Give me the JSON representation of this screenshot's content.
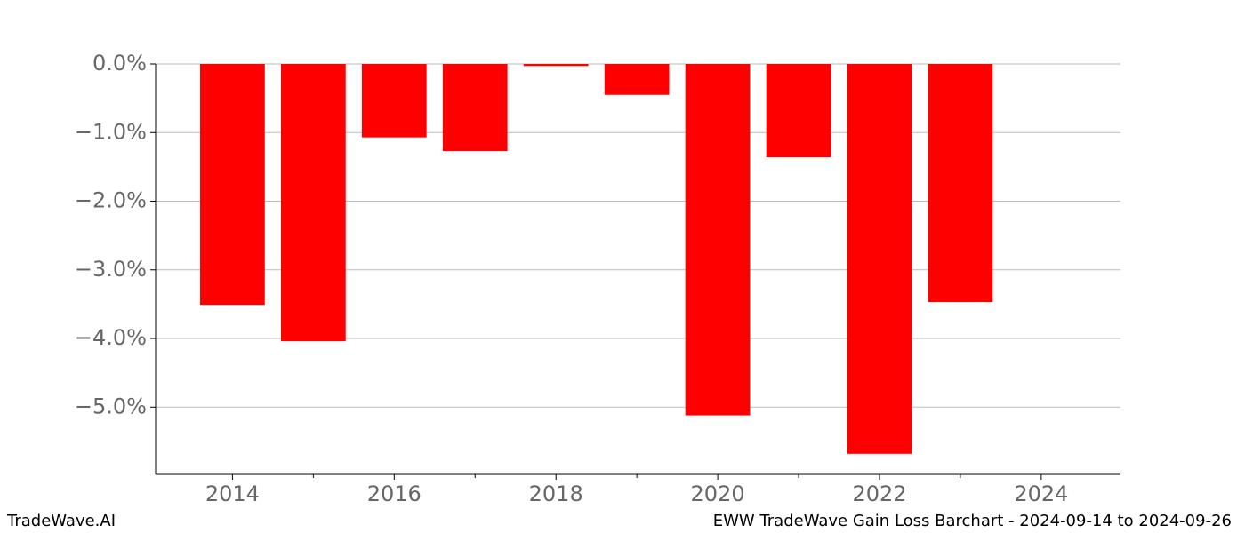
{
  "chart_data": {
    "type": "bar",
    "title": "EWW TradeWave Gain Loss Barchart - 2024-09-14 to 2024-09-26",
    "source": "TradeWave.AI",
    "x": [
      2014,
      2015,
      2016,
      2017,
      2018,
      2019,
      2020,
      2021,
      2022,
      2023
    ],
    "values": [
      -3.51,
      -4.04,
      -1.07,
      -1.27,
      -0.03,
      -0.45,
      -5.12,
      -1.36,
      -5.68,
      -3.47
    ],
    "color": "#ff0000",
    "xlim": [
      2013.05,
      2024.98
    ],
    "xticks": [
      2014,
      2016,
      2018,
      2020,
      2022,
      2024
    ],
    "xminor_ticks": [
      2015,
      2017,
      2019,
      2021,
      2023
    ],
    "ylim": [
      -5.98,
      0
    ],
    "yticks": [
      {
        "value": 0,
        "label": "0.0%"
      },
      {
        "value": -1,
        "label": "−1.0%"
      },
      {
        "value": -2,
        "label": "−2.0%"
      },
      {
        "value": -3,
        "label": "−3.0%"
      },
      {
        "value": -4,
        "label": "−4.0%"
      },
      {
        "value": -5,
        "label": "−5.0%"
      }
    ],
    "grid": true
  }
}
